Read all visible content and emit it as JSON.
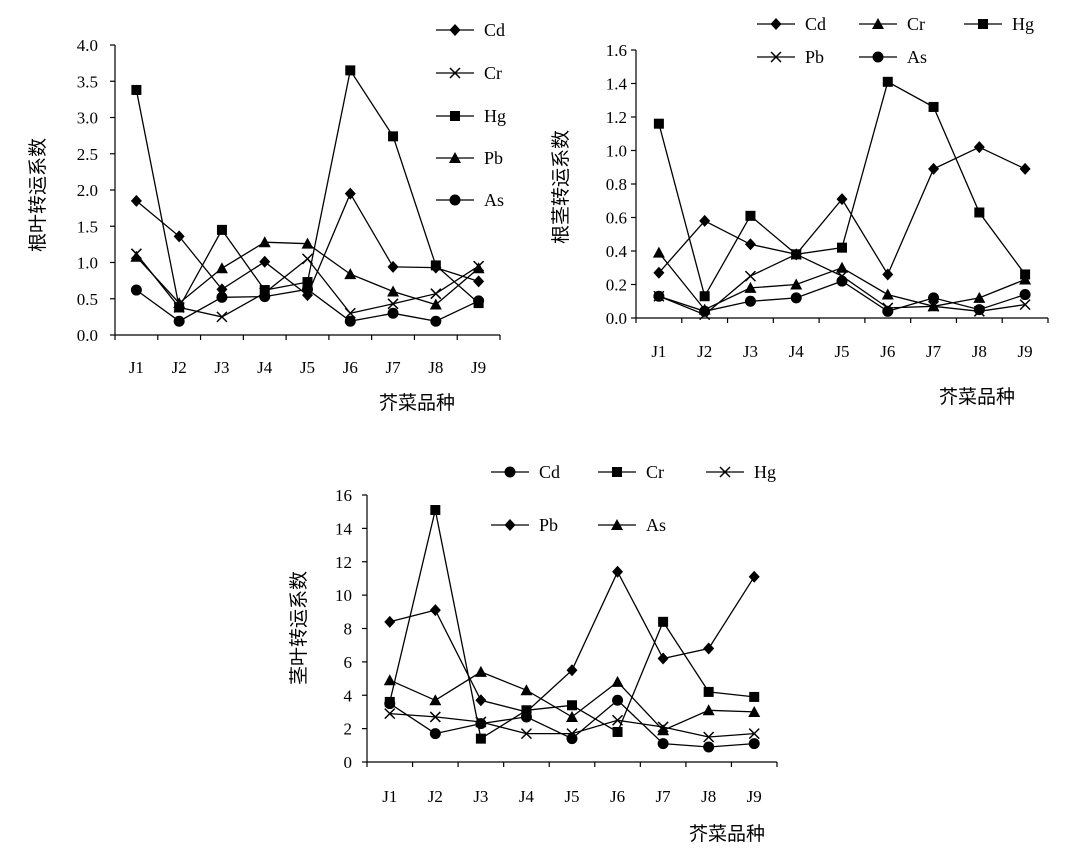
{
  "chart_data": [
    {
      "type": "line",
      "xlabel": "芥菜品种",
      "ylabel": "根叶转运系数",
      "categories": [
        "J1",
        "J2",
        "J3",
        "J4",
        "J5",
        "J6",
        "J7",
        "J8",
        "J9"
      ],
      "ylim": [
        0,
        4
      ],
      "yticks": [
        "0.0",
        "0.5",
        "1.0",
        "1.5",
        "2.0",
        "2.5",
        "3.0",
        "3.5",
        "4.0"
      ],
      "grid": false,
      "legend_position": "right",
      "series": [
        {
          "name": "Cd",
          "marker": "diamond",
          "values": [
            1.85,
            1.36,
            0.63,
            1.01,
            0.55,
            1.95,
            0.94,
            0.93,
            0.74
          ]
        },
        {
          "name": "Cr",
          "marker": "x",
          "values": [
            1.12,
            0.38,
            0.25,
            0.58,
            1.05,
            0.3,
            0.43,
            0.57,
            0.95
          ]
        },
        {
          "name": "Hg",
          "marker": "square",
          "values": [
            3.38,
            0.38,
            1.45,
            0.62,
            0.73,
            3.65,
            2.74,
            0.96,
            0.44
          ]
        },
        {
          "name": "Pb",
          "marker": "triangle",
          "values": [
            1.08,
            0.44,
            0.92,
            1.28,
            1.26,
            0.84,
            0.6,
            0.42,
            0.92
          ]
        },
        {
          "name": "As",
          "marker": "circle",
          "values": [
            0.62,
            0.19,
            0.52,
            0.53,
            0.63,
            0.19,
            0.3,
            0.19,
            0.47
          ]
        }
      ]
    },
    {
      "type": "line",
      "xlabel": "芥菜品种",
      "ylabel": "根茎转运系数",
      "categories": [
        "J1",
        "J2",
        "J3",
        "J4",
        "J5",
        "J6",
        "J7",
        "J8",
        "J9"
      ],
      "ylim": [
        0,
        1.6
      ],
      "yticks": [
        "0.0",
        "0.2",
        "0.4",
        "0.6",
        "0.8",
        "1.0",
        "1.2",
        "1.4",
        "1.6"
      ],
      "grid": false,
      "legend_position": "top",
      "series": [
        {
          "name": "Cd",
          "marker": "diamond",
          "values": [
            0.27,
            0.58,
            0.44,
            0.38,
            0.71,
            0.26,
            0.89,
            1.02,
            0.89
          ]
        },
        {
          "name": "Cr",
          "marker": "triangle",
          "values": [
            0.39,
            0.05,
            0.18,
            0.2,
            0.3,
            0.14,
            0.07,
            0.12,
            0.23
          ]
        },
        {
          "name": "Hg",
          "marker": "square",
          "values": [
            1.16,
            0.13,
            0.61,
            0.38,
            0.42,
            1.41,
            1.26,
            0.63,
            0.26
          ]
        },
        {
          "name": "Pb",
          "marker": "x",
          "values": [
            0.13,
            0.02,
            0.25,
            0.38,
            0.25,
            0.06,
            0.07,
            0.04,
            0.08
          ]
        },
        {
          "name": "As",
          "marker": "circle",
          "values": [
            0.13,
            0.04,
            0.1,
            0.12,
            0.22,
            0.04,
            0.12,
            0.05,
            0.14
          ]
        }
      ]
    },
    {
      "type": "line",
      "xlabel": "芥菜品种",
      "ylabel": "茎叶转运系数",
      "categories": [
        "J1",
        "J2",
        "J3",
        "J4",
        "J5",
        "J6",
        "J7",
        "J8",
        "J9"
      ],
      "ylim": [
        0,
        16
      ],
      "yticks": [
        "0",
        "2",
        "4",
        "6",
        "8",
        "10",
        "12",
        "14",
        "16"
      ],
      "grid": false,
      "legend_position": "top",
      "series": [
        {
          "name": "Cd",
          "marker": "circle",
          "values": [
            3.5,
            1.7,
            2.3,
            2.7,
            1.4,
            3.7,
            1.1,
            0.9,
            1.1
          ]
        },
        {
          "name": "Cr",
          "marker": "square",
          "values": [
            3.6,
            15.1,
            1.4,
            3.1,
            3.4,
            1.8,
            8.4,
            4.2,
            3.9
          ]
        },
        {
          "name": "Hg",
          "marker": "x",
          "values": [
            2.9,
            2.7,
            2.4,
            1.7,
            1.7,
            2.5,
            2.1,
            1.5,
            1.7
          ]
        },
        {
          "name": "Pb",
          "marker": "diamond",
          "values": [
            8.4,
            9.1,
            3.7,
            3.0,
            5.5,
            11.4,
            6.2,
            6.8,
            11.1
          ]
        },
        {
          "name": "As",
          "marker": "triangle",
          "values": [
            4.9,
            3.7,
            5.4,
            4.3,
            2.7,
            4.8,
            1.9,
            3.1,
            3.0
          ]
        }
      ]
    }
  ]
}
